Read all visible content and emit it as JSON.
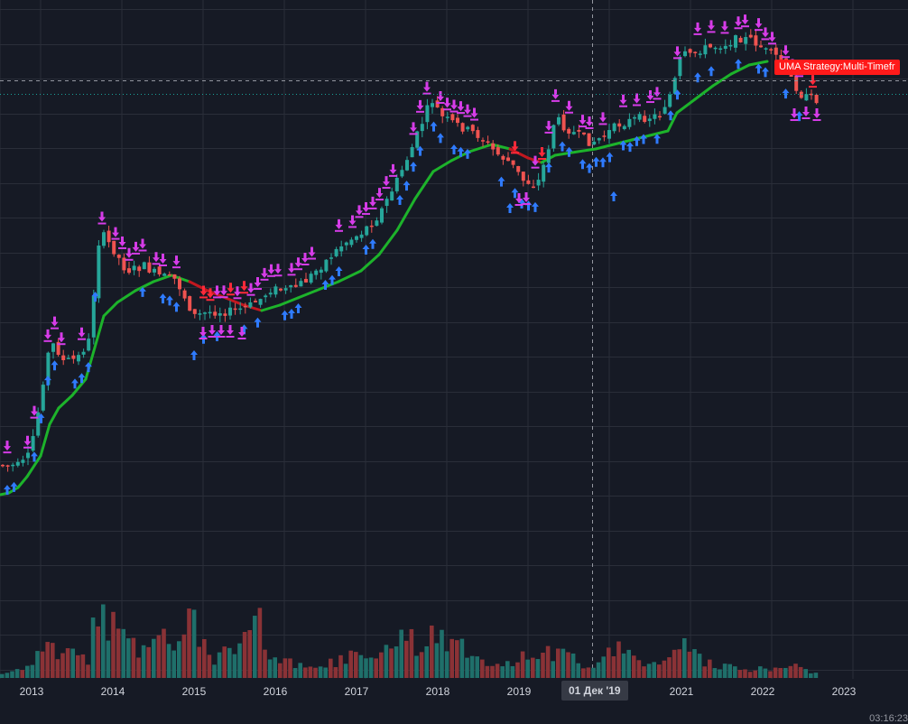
{
  "chart_data": {
    "type": "candlestick",
    "x_axis": {
      "ticks": [
        "2013",
        "2014",
        "2015",
        "2016",
        "2017",
        "2018",
        "2019",
        "2020",
        "2021",
        "2022",
        "2023"
      ]
    },
    "crosshair": {
      "label": "01 Дек '19"
    },
    "strategy_label": "UMA Strategy:Multi-Timefr",
    "clock": "03:16:23",
    "colors": {
      "background": "#161a25",
      "grid": "#2a2e39",
      "candle_up": "#26a69a",
      "candle_down": "#ef5350",
      "ma_up": "#1db32b",
      "ma_down": "#c2181f",
      "signal_buy": "#2f7bff",
      "signal_sell": "#d63ce8",
      "signal_sell_strong": "#ff2a3a",
      "volume_up": "#1f6f6a",
      "volume_down": "#8a3236",
      "label_bg": "#ff1a1a"
    }
  }
}
